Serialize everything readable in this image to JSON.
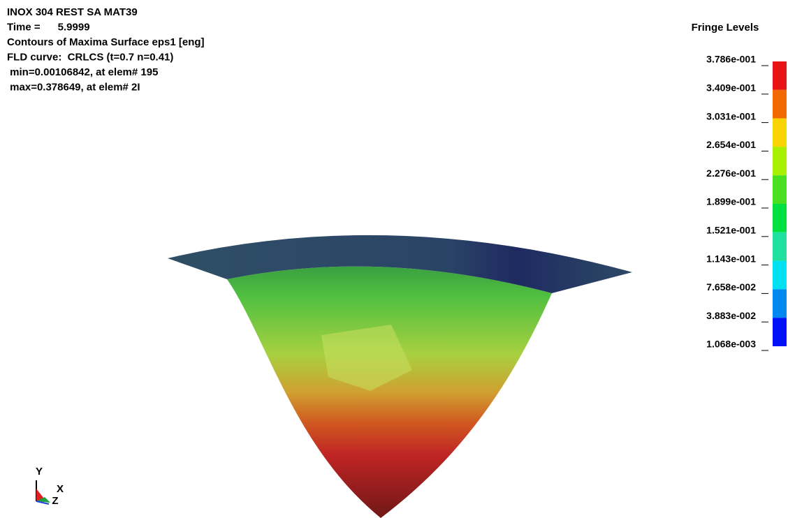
{
  "header": {
    "lines": [
      "INOX 304 REST SA MAT39",
      "Time =      5.9999",
      "Contours of Maxima Surface eps1 [eng]",
      "FLD curve:  CRLCS (t=0.7 n=0.41)",
      " min=0.00106842, at elem# 195",
      " max=0.378649, at elem# 2I"
    ]
  },
  "legend": {
    "title": "Fringe Levels",
    "levels": [
      "3.786e-001",
      "3.409e-001",
      "3.031e-001",
      "2.654e-001",
      "2.276e-001",
      "1.899e-001",
      "1.521e-001",
      "1.143e-001",
      "7.658e-002",
      "3.883e-002",
      "1.068e-003"
    ]
  },
  "triad": {
    "y": "Y",
    "x": "X",
    "z": "Z"
  }
}
